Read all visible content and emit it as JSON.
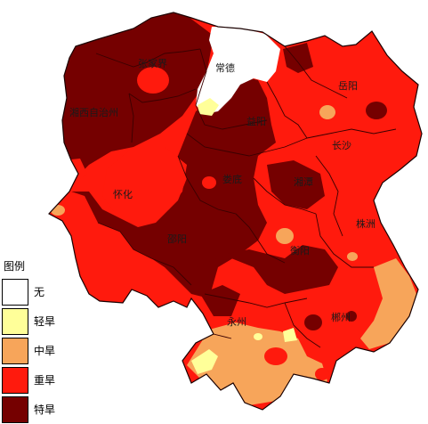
{
  "legend": {
    "title": "图例",
    "items": [
      {
        "label": "无",
        "color": "#ffffff"
      },
      {
        "label": "轻旱",
        "color": "#ffff99"
      },
      {
        "label": "中旱",
        "color": "#f7a55a"
      },
      {
        "label": "重旱",
        "color": "#ff1a0d"
      },
      {
        "label": "特旱",
        "color": "#750000"
      }
    ]
  },
  "cities": {
    "zhangjiajie": "张家界",
    "changde": "常德",
    "yueyang": "岳阳",
    "xiangxi": "湘西自治州",
    "yiyang": "益阳",
    "changsha": "长沙",
    "huaihua": "怀化",
    "loudi": "娄底",
    "xiangtan": "湘潭",
    "zhuzhou": "株洲",
    "shaoyang": "邵阳",
    "hengyang": "衡阳",
    "yongzhou": "永州",
    "chenzhou": "郴州"
  }
}
